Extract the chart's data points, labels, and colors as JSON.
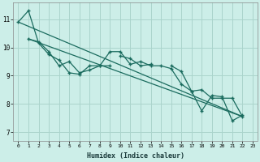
{
  "title": "",
  "xlabel": "Humidex (Indice chaleur)",
  "ylabel": "",
  "bg_color": "#cceee8",
  "grid_color": "#aad4cc",
  "line_color": "#1a6b5e",
  "xlim": [
    -0.5,
    23.5
  ],
  "ylim": [
    6.7,
    11.6
  ],
  "yticks": [
    7,
    8,
    9,
    10,
    11
  ],
  "xticks": [
    0,
    1,
    2,
    3,
    4,
    5,
    6,
    7,
    8,
    9,
    10,
    11,
    12,
    13,
    14,
    15,
    16,
    17,
    18,
    19,
    20,
    21,
    22,
    23
  ],
  "series1": {
    "x": [
      0,
      1,
      2,
      3,
      4,
      5,
      6,
      7,
      8,
      9,
      10,
      11,
      12,
      13,
      14,
      15,
      16,
      17,
      18,
      19,
      20,
      21,
      22
    ],
    "y": [
      10.9,
      11.3,
      10.15,
      9.75,
      9.55,
      9.1,
      9.05,
      9.35,
      9.35,
      9.85,
      9.85,
      9.4,
      9.5,
      9.35,
      9.35,
      9.25,
      8.7,
      8.45,
      7.75,
      8.3,
      8.25,
      7.4,
      7.6
    ]
  },
  "series2": {
    "x": [
      1,
      2,
      3,
      4,
      5,
      6,
      7,
      8,
      9
    ],
    "y": [
      10.3,
      10.2,
      9.85,
      9.35,
      9.5,
      9.1,
      9.2,
      9.35,
      9.35
    ]
  },
  "series3": {
    "x": [
      10,
      11,
      12,
      13
    ],
    "y": [
      9.7,
      9.6,
      9.35,
      9.4
    ]
  },
  "series4": {
    "x": [
      15,
      16,
      17,
      18,
      19,
      20,
      21,
      22
    ],
    "y": [
      9.35,
      9.15,
      8.45,
      8.5,
      8.2,
      8.2,
      8.2,
      7.55
    ]
  },
  "trend1": {
    "x": [
      0,
      22
    ],
    "y": [
      10.9,
      7.55
    ]
  },
  "trend2": {
    "x": [
      1,
      22
    ],
    "y": [
      10.3,
      7.55
    ]
  }
}
